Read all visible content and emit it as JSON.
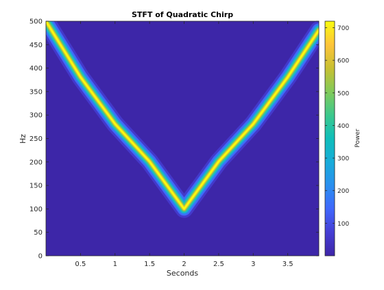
{
  "chart_data": {
    "type": "heatmap",
    "title": "STFT of Quadratic Chirp",
    "xlabel": "Seconds",
    "ylabel": "Hz",
    "xlim": [
      0,
      3.95
    ],
    "ylim": [
      0,
      500
    ],
    "xticks": [
      0.5,
      1,
      1.5,
      2,
      2.5,
      3,
      3.5
    ],
    "xtick_labels": [
      "0.5",
      "1",
      "1.5",
      "2",
      "2.5",
      "3",
      "3.5"
    ],
    "yticks": [
      0,
      50,
      100,
      150,
      200,
      250,
      300,
      350,
      400,
      450,
      500
    ],
    "ytick_labels": [
      "0",
      "50",
      "100",
      "150",
      "200",
      "250",
      "300",
      "350",
      "400",
      "450",
      "500"
    ],
    "colormap": "parula",
    "background_value": 0,
    "ridge": {
      "description": "quadratic chirp instantaneous frequency",
      "x": [
        0,
        0.5,
        1,
        1.5,
        2,
        2.5,
        3,
        3.5,
        3.95
      ],
      "y": [
        500,
        381,
        281,
        201,
        100,
        201,
        281,
        381,
        481
      ],
      "peak_power": 720,
      "bandwidth_hz": 12
    },
    "colorbar": {
      "label": "Power",
      "lim": [
        0,
        720
      ],
      "ticks": [
        100,
        200,
        300,
        400,
        500,
        600,
        700
      ],
      "tick_labels": [
        "100",
        "200",
        "300",
        "400",
        "500",
        "600",
        "700"
      ]
    },
    "grid": false,
    "legend": "none"
  }
}
